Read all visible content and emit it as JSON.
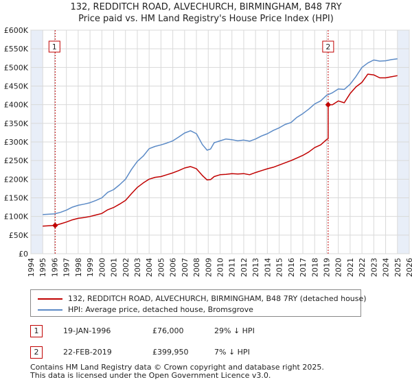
{
  "chart_data": {
    "type": "line",
    "title": "132, REDDITCH ROAD, ALVECHURCH, BIRMINGHAM, B48 7RY",
    "subtitle": "Price paid vs. HM Land Registry's House Price Index (HPI)",
    "xlim": [
      1994,
      2026
    ],
    "ylim": [
      0,
      600000
    ],
    "x_ticks": [
      "1994",
      "1995",
      "1996",
      "1997",
      "1998",
      "1999",
      "2000",
      "2001",
      "2002",
      "2003",
      "2004",
      "2005",
      "2006",
      "2007",
      "2008",
      "2009",
      "2010",
      "2011",
      "2012",
      "2013",
      "2014",
      "2015",
      "2016",
      "2017",
      "2018",
      "2019",
      "2020",
      "2021",
      "2022",
      "2023",
      "2024",
      "2025",
      "2026"
    ],
    "y_ticks": [
      {
        "value": 0,
        "label": "£0"
      },
      {
        "value": 50000,
        "label": "£50K"
      },
      {
        "value": 100000,
        "label": "£100K"
      },
      {
        "value": 150000,
        "label": "£150K"
      },
      {
        "value": 200000,
        "label": "£200K"
      },
      {
        "value": 250000,
        "label": "£250K"
      },
      {
        "value": 300000,
        "label": "£300K"
      },
      {
        "value": 350000,
        "label": "£350K"
      },
      {
        "value": 400000,
        "label": "£400K"
      },
      {
        "value": 450000,
        "label": "£450K"
      },
      {
        "value": 500000,
        "label": "£500K"
      },
      {
        "value": 550000,
        "label": "£550K"
      },
      {
        "value": 600000,
        "label": "£600K"
      }
    ],
    "series": [
      {
        "name": "132, REDDITCH ROAD, ALVECHURCH, BIRMINGHAM, B48 7RY (detached house)",
        "color": "#c00000",
        "x": [
          1995.0,
          1995.5,
          1996.05,
          1996.5,
          1997.0,
          1997.5,
          1998.0,
          1998.5,
          1999.0,
          1999.5,
          2000.0,
          2000.5,
          2001.0,
          2001.5,
          2002.0,
          2002.5,
          2003.0,
          2003.5,
          2004.0,
          2004.5,
          2005.0,
          2005.5,
          2006.0,
          2006.5,
          2007.0,
          2007.5,
          2008.0,
          2008.5,
          2008.9,
          2009.2,
          2009.5,
          2010.0,
          2010.5,
          2011.0,
          2011.5,
          2012.0,
          2012.5,
          2013.0,
          2013.5,
          2014.0,
          2014.5,
          2015.0,
          2015.5,
          2016.0,
          2016.5,
          2017.0,
          2017.5,
          2018.0,
          2018.5,
          2019.0,
          2019.14,
          2019.14,
          2019.5,
          2020.0,
          2020.5,
          2021.0,
          2021.5,
          2022.0,
          2022.5,
          2023.0,
          2023.5,
          2024.0,
          2024.5,
          2025.0
        ],
        "y": [
          74000,
          75000,
          76000,
          80000,
          85000,
          91000,
          95000,
          97000,
          100000,
          104000,
          108000,
          118000,
          124000,
          133000,
          143000,
          161000,
          178000,
          190000,
          200000,
          205000,
          207000,
          212000,
          217000,
          223000,
          230000,
          234000,
          228000,
          210000,
          198000,
          199000,
          207000,
          212000,
          213000,
          215000,
          214000,
          215000,
          212000,
          218000,
          223000,
          228000,
          232000,
          238000,
          244000,
          250000,
          257000,
          264000,
          273000,
          285000,
          292000,
          306000,
          309000,
          399950,
          400000,
          410000,
          405000,
          430000,
          448000,
          460000,
          482000,
          480000,
          472000,
          472000,
          475000,
          478000
        ]
      },
      {
        "name": "HPI: Average price, detached house, Bromsgrove",
        "color": "#5b8ac6",
        "x": [
          1995.0,
          1995.5,
          1996.0,
          1996.5,
          1997.0,
          1997.5,
          1998.0,
          1998.5,
          1999.0,
          1999.5,
          2000.0,
          2000.5,
          2001.0,
          2001.5,
          2002.0,
          2002.5,
          2003.0,
          2003.5,
          2004.0,
          2004.5,
          2005.0,
          2005.5,
          2006.0,
          2006.5,
          2007.0,
          2007.5,
          2008.0,
          2008.5,
          2008.9,
          2009.2,
          2009.5,
          2010.0,
          2010.5,
          2011.0,
          2011.5,
          2012.0,
          2012.5,
          2013.0,
          2013.5,
          2014.0,
          2014.5,
          2015.0,
          2015.5,
          2016.0,
          2016.5,
          2017.0,
          2017.5,
          2018.0,
          2018.5,
          2019.0,
          2019.5,
          2020.0,
          2020.5,
          2021.0,
          2021.5,
          2022.0,
          2022.5,
          2023.0,
          2023.5,
          2024.0,
          2024.5,
          2025.0
        ],
        "y": [
          105000,
          106000,
          107000,
          111000,
          117000,
          125000,
          130000,
          133000,
          137000,
          143000,
          150000,
          165000,
          172000,
          185000,
          200000,
          226000,
          248000,
          262000,
          282000,
          288000,
          292000,
          297000,
          303000,
          313000,
          324000,
          330000,
          322000,
          293000,
          278000,
          281000,
          298000,
          303000,
          308000,
          306000,
          303000,
          305000,
          302000,
          308000,
          316000,
          322000,
          331000,
          338000,
          347000,
          352000,
          366000,
          376000,
          388000,
          402000,
          410000,
          425000,
          432000,
          442000,
          441000,
          455000,
          476000,
          500000,
          512000,
          520000,
          517000,
          518000,
          521000,
          523000
        ]
      }
    ],
    "annotations": [
      {
        "label": "1",
        "x": 1996.05,
        "y": 76000
      },
      {
        "label": "2",
        "x": 2019.14,
        "y": 399950
      }
    ],
    "legend_position": "below-plot"
  },
  "legend": {
    "price_paid": "132, REDDITCH ROAD, ALVECHURCH, BIRMINGHAM, B48 7RY (detached house)",
    "hpi": "HPI: Average price, detached house, Bromsgrove"
  },
  "transactions": [
    {
      "num": "1",
      "date": "19-JAN-1996",
      "price": "£76,000",
      "hpi_diff": "29% ↓ HPI"
    },
    {
      "num": "2",
      "date": "22-FEB-2019",
      "price": "£399,950",
      "hpi_diff": "7% ↓ HPI"
    }
  ],
  "footer": {
    "line1": "Contains HM Land Registry data © Crown copyright and database right 2025.",
    "line2": "This data is licensed under the Open Government Licence v3.0."
  },
  "colors": {
    "price_line": "#c00000",
    "hpi_line": "#5b8ac6",
    "grid": "#d9d9d9",
    "shade": "#e8eef8"
  }
}
